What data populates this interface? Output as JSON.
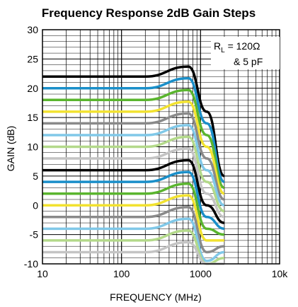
{
  "chart_data": {
    "type": "line",
    "title": "Frequency Response 2dB Gain Steps",
    "xlabel": "FREQUENCY (MHz)",
    "ylabel": "GAIN (dB)",
    "xscale": "log",
    "xlim": [
      10,
      10000
    ],
    "ylim": [
      -10,
      30
    ],
    "x_tick_labels": [
      "10",
      "100",
      "1000",
      "10k"
    ],
    "y_tick_labels": [
      "30",
      "25",
      "20",
      "15",
      "10",
      "5",
      "0",
      "-5",
      "-10"
    ],
    "grid": true,
    "annotation": {
      "line1_main": "R",
      "line1_sub": "L",
      "line1_rest": " = 120Ω",
      "line2": "& 5 pF"
    },
    "series_colors": [
      "#000000",
      "#1a8fc9",
      "#5ab52e",
      "#f2e230",
      "#8a8a8a",
      "#80c8e8",
      "#b3d98a",
      "#c4c4c4"
    ],
    "series": [
      {
        "values": [
          {
            "x": 10,
            "y": 22
          },
          {
            "x": 200,
            "y": 22
          },
          {
            "x": 700,
            "y": 23.7
          },
          {
            "x": 1200,
            "y": 16
          },
          {
            "x": 2000,
            "y": 5
          }
        ]
      },
      {
        "values": [
          {
            "x": 10,
            "y": 20
          },
          {
            "x": 200,
            "y": 20
          },
          {
            "x": 700,
            "y": 21.7
          },
          {
            "x": 1200,
            "y": 14
          },
          {
            "x": 2000,
            "y": 4
          }
        ]
      },
      {
        "values": [
          {
            "x": 10,
            "y": 18
          },
          {
            "x": 200,
            "y": 18
          },
          {
            "x": 700,
            "y": 19.7
          },
          {
            "x": 1200,
            "y": 12
          },
          {
            "x": 2000,
            "y": 3
          }
        ]
      },
      {
        "values": [
          {
            "x": 10,
            "y": 16
          },
          {
            "x": 200,
            "y": 16
          },
          {
            "x": 700,
            "y": 17.7
          },
          {
            "x": 1200,
            "y": 10
          },
          {
            "x": 2000,
            "y": 2
          }
        ]
      },
      {
        "values": [
          {
            "x": 10,
            "y": 14
          },
          {
            "x": 200,
            "y": 14
          },
          {
            "x": 700,
            "y": 15.7
          },
          {
            "x": 1200,
            "y": 8
          },
          {
            "x": 2000,
            "y": 1
          }
        ]
      },
      {
        "values": [
          {
            "x": 10,
            "y": 12
          },
          {
            "x": 200,
            "y": 12
          },
          {
            "x": 700,
            "y": 13.7
          },
          {
            "x": 1200,
            "y": 6
          },
          {
            "x": 2000,
            "y": 0
          }
        ]
      },
      {
        "values": [
          {
            "x": 10,
            "y": 10
          },
          {
            "x": 200,
            "y": 10
          },
          {
            "x": 700,
            "y": 11.7
          },
          {
            "x": 1200,
            "y": 4
          },
          {
            "x": 2000,
            "y": -1
          }
        ]
      },
      {
        "values": [
          {
            "x": 10,
            "y": 8
          },
          {
            "x": 200,
            "y": 8
          },
          {
            "x": 700,
            "y": 9.7
          },
          {
            "x": 1200,
            "y": 2
          },
          {
            "x": 2000,
            "y": -2
          }
        ]
      },
      {
        "values": [
          {
            "x": 10,
            "y": 6
          },
          {
            "x": 200,
            "y": 6
          },
          {
            "x": 700,
            "y": 7.7
          },
          {
            "x": 1200,
            "y": 0
          },
          {
            "x": 2000,
            "y": -3
          }
        ]
      },
      {
        "values": [
          {
            "x": 10,
            "y": 4
          },
          {
            "x": 200,
            "y": 4
          },
          {
            "x": 700,
            "y": 5.7
          },
          {
            "x": 1200,
            "y": -2
          },
          {
            "x": 2000,
            "y": -4
          }
        ]
      },
      {
        "values": [
          {
            "x": 10,
            "y": 2
          },
          {
            "x": 200,
            "y": 2
          },
          {
            "x": 700,
            "y": 3.7
          },
          {
            "x": 1200,
            "y": -4
          },
          {
            "x": 2000,
            "y": -5
          }
        ]
      },
      {
        "values": [
          {
            "x": 10,
            "y": 0
          },
          {
            "x": 200,
            "y": 0
          },
          {
            "x": 700,
            "y": 1.7
          },
          {
            "x": 1200,
            "y": -6
          },
          {
            "x": 2000,
            "y": -6
          }
        ]
      },
      {
        "values": [
          {
            "x": 10,
            "y": -2
          },
          {
            "x": 200,
            "y": -2
          },
          {
            "x": 700,
            "y": -0.3
          },
          {
            "x": 1200,
            "y": -8
          },
          {
            "x": 2000,
            "y": -7
          }
        ]
      },
      {
        "values": [
          {
            "x": 10,
            "y": -4
          },
          {
            "x": 200,
            "y": -4
          },
          {
            "x": 700,
            "y": -2.3
          },
          {
            "x": 1200,
            "y": -9.5
          },
          {
            "x": 2000,
            "y": -8
          }
        ]
      },
      {
        "values": [
          {
            "x": 10,
            "y": -6
          },
          {
            "x": 200,
            "y": -6
          },
          {
            "x": 700,
            "y": -4.3
          },
          {
            "x": 1200,
            "y": -10
          },
          {
            "x": 2000,
            "y": -9
          }
        ]
      },
      {
        "values": [
          {
            "x": 10,
            "y": -8
          },
          {
            "x": 200,
            "y": -8
          },
          {
            "x": 700,
            "y": -6.3
          },
          {
            "x": 1200,
            "y": -10
          },
          {
            "x": 2000,
            "y": -10
          }
        ]
      }
    ]
  }
}
